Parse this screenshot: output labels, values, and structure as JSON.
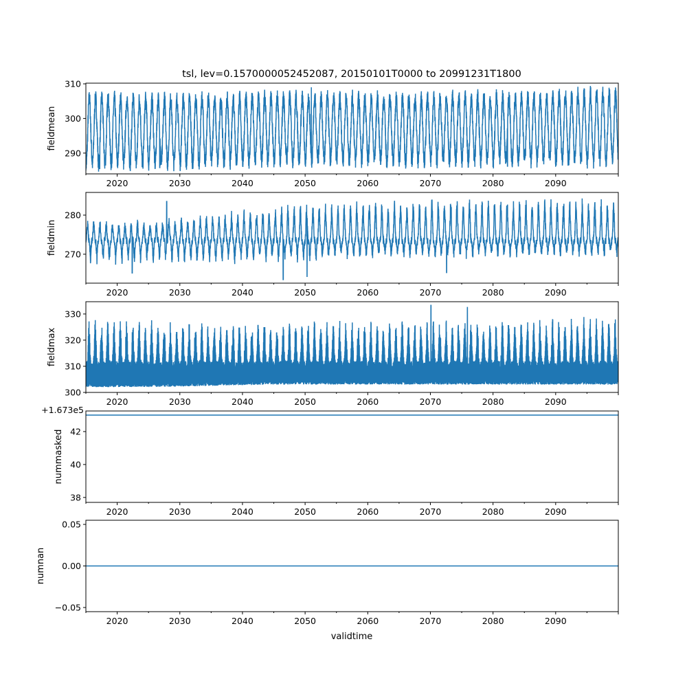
{
  "chart_data": {
    "type": "line",
    "title": "tsl, lev=0.1570000052452087, 20150101T0000 to 20991231T1800",
    "xlabel": "validtime",
    "xlim": [
      2015,
      2100
    ],
    "xticks": [
      "2020",
      "2030",
      "2040",
      "2050",
      "2060",
      "2070",
      "2080",
      "2090"
    ],
    "xtick_values": [
      2020,
      2030,
      2040,
      2050,
      2060,
      2070,
      2080,
      2090
    ],
    "color": "#1f77b4",
    "envelope_years": [
      2015,
      2025,
      2035,
      2045,
      2055,
      2065,
      2075,
      2085,
      2095
    ],
    "panels": [
      {
        "ylabel": "fieldmean",
        "ylim": [
          284,
          310.2
        ],
        "yticks": [
          "290",
          "300",
          "310"
        ],
        "ytick_values": [
          290,
          300,
          310
        ],
        "seasonal_high": [
          306,
          305.5,
          305.5,
          306,
          306,
          305.5,
          306,
          306,
          307
        ],
        "seasonal_low": [
          287,
          287,
          287.5,
          288,
          288,
          288,
          288,
          288,
          288
        ],
        "extremes": [
          {
            "x": 2051.0,
            "y": 309
          },
          {
            "x": 2017.2,
            "y": 285.5
          },
          {
            "x": 2026.8,
            "y": 285.8
          },
          {
            "x": 2082.3,
            "y": 286.2
          }
        ]
      },
      {
        "ylabel": "fieldmin",
        "ylim": [
          262.6,
          285.8
        ],
        "yticks": [
          "270",
          "280"
        ],
        "ytick_values": [
          270,
          280
        ],
        "seasonal_high": [
          278.5,
          278,
          280,
          282,
          283,
          283.5,
          284,
          284,
          284
        ],
        "seasonal_low": [
          268,
          268,
          268,
          268.5,
          269,
          269.5,
          269.5,
          269.5,
          270
        ],
        "baseline": 273.5,
        "extremes": [
          {
            "x": 2046.5,
            "y": 263.5
          },
          {
            "x": 2050.3,
            "y": 264.3
          },
          {
            "x": 2022.4,
            "y": 265.2
          },
          {
            "x": 2072.6,
            "y": 265.3
          },
          {
            "x": 2027.9,
            "y": 283.5
          }
        ]
      },
      {
        "ylabel": "fieldmax",
        "ylim": [
          300,
          334.7
        ],
        "yticks": [
          "300",
          "310",
          "320",
          "330"
        ],
        "ytick_values": [
          300,
          310,
          320,
          330
        ],
        "seasonal_high": [
          328,
          328,
          327,
          327,
          328,
          328,
          328,
          328,
          329
        ],
        "seasonal_low": [
          302,
          302,
          302.5,
          303,
          303,
          303,
          303,
          303,
          303
        ],
        "band_top": 312,
        "extremes": [
          {
            "x": 2070.1,
            "y": 333.3
          },
          {
            "x": 2075.9,
            "y": 332.5
          }
        ]
      },
      {
        "ylabel": "nummasked",
        "ylim": [
          37.7,
          43.25
        ],
        "yticks": [
          "38",
          "40",
          "42"
        ],
        "ytick_values": [
          38,
          40,
          42
        ],
        "offset_text": "+1.673e5",
        "constant": 43.0
      },
      {
        "ylabel": "numnan",
        "ylim": [
          -0.055,
          0.055
        ],
        "yticks": [
          "−0.05",
          "0.00",
          "0.05"
        ],
        "ytick_values": [
          -0.05,
          0,
          0.05
        ],
        "constant": 0.0
      }
    ]
  }
}
